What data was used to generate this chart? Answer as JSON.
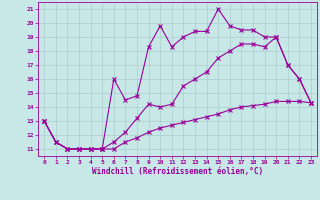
{
  "xlabel": "Windchill (Refroidissement éolien,°C)",
  "xlim": [
    -0.5,
    23.5
  ],
  "ylim": [
    10.5,
    21.5
  ],
  "yticks": [
    11,
    12,
    13,
    14,
    15,
    16,
    17,
    18,
    19,
    20,
    21
  ],
  "xticks": [
    0,
    1,
    2,
    3,
    4,
    5,
    6,
    7,
    8,
    9,
    10,
    11,
    12,
    13,
    14,
    15,
    16,
    17,
    18,
    19,
    20,
    21,
    22,
    23
  ],
  "line_color": "#990099",
  "bg_color": "#c8e8e8",
  "grid_color": "#a8cccc",
  "line1_x": [
    0,
    1,
    2,
    3,
    4,
    5,
    6,
    7,
    8,
    9,
    10,
    11,
    12,
    13,
    14,
    15,
    16,
    17,
    18,
    19,
    20,
    21,
    22,
    23
  ],
  "line1_y": [
    13.0,
    11.5,
    11.0,
    11.0,
    11.0,
    11.0,
    16.0,
    14.5,
    14.8,
    18.3,
    19.8,
    18.3,
    19.0,
    19.4,
    19.4,
    21.0,
    19.8,
    19.5,
    19.5,
    19.0,
    19.0,
    17.0,
    16.0,
    14.3
  ],
  "line2_x": [
    0,
    1,
    2,
    3,
    4,
    5,
    6,
    7,
    8,
    9,
    10,
    11,
    12,
    13,
    14,
    15,
    16,
    17,
    18,
    19,
    20,
    21,
    22,
    23
  ],
  "line2_y": [
    13.0,
    11.5,
    11.0,
    11.0,
    11.0,
    11.0,
    11.5,
    12.2,
    13.2,
    14.2,
    14.0,
    14.2,
    15.5,
    16.0,
    16.5,
    17.5,
    18.0,
    18.5,
    18.5,
    18.3,
    19.0,
    17.0,
    16.0,
    14.3
  ],
  "line3_x": [
    0,
    1,
    2,
    3,
    4,
    5,
    6,
    7,
    8,
    9,
    10,
    11,
    12,
    13,
    14,
    15,
    16,
    17,
    18,
    19,
    20,
    21,
    22,
    23
  ],
  "line3_y": [
    13.0,
    11.5,
    11.0,
    11.0,
    11.0,
    11.0,
    11.0,
    11.5,
    11.8,
    12.2,
    12.5,
    12.7,
    12.9,
    13.1,
    13.3,
    13.5,
    13.8,
    14.0,
    14.1,
    14.2,
    14.4,
    14.4,
    14.4,
    14.3
  ]
}
